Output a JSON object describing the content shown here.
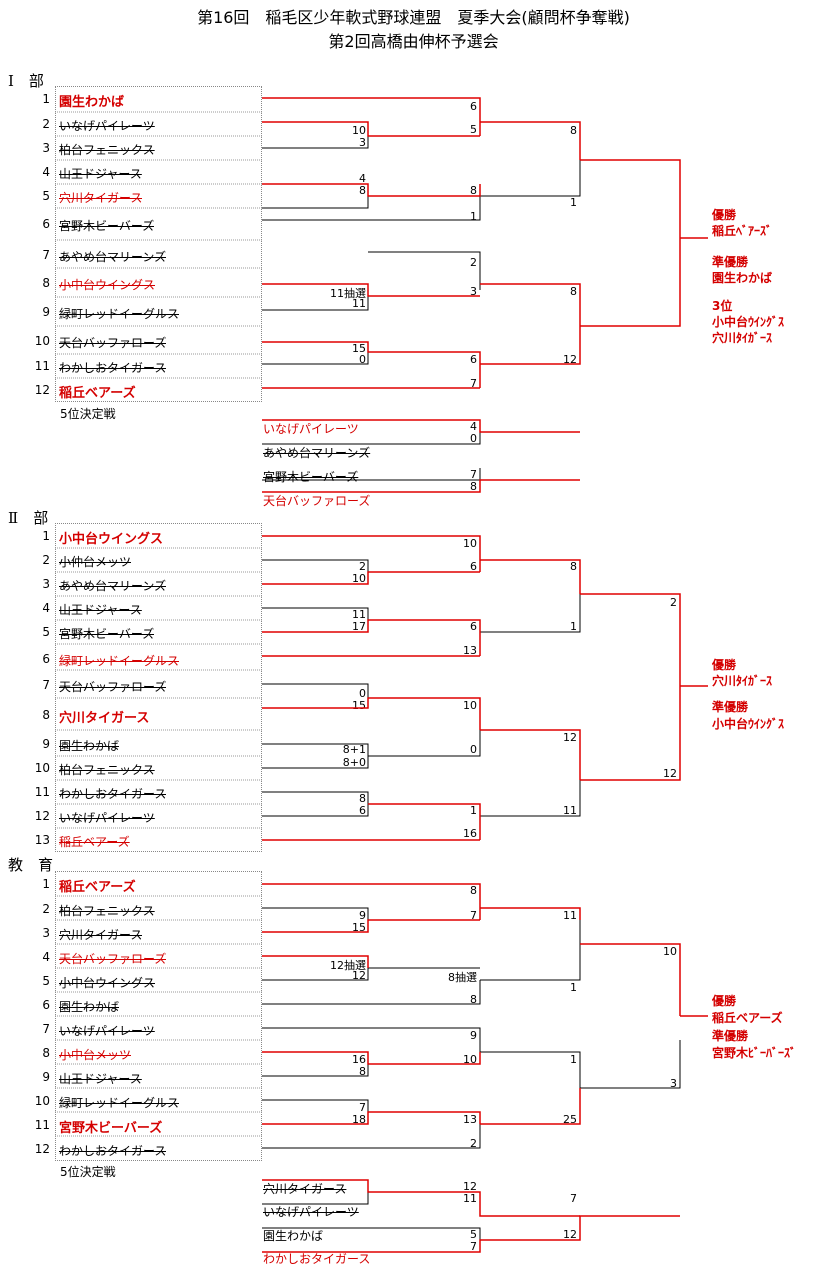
{
  "title": {
    "line1": "第16回　稲毛区少年軟式野球連盟　夏季大会(顧問杯争奪戦)",
    "line2": "第2回高橋由伸杯予選会"
  },
  "sections": {
    "s1": {
      "label": "Ⅰ　部",
      "teams": [
        {
          "no": "1",
          "name": "園生わかば"
        },
        {
          "no": "2",
          "name": "いなげパイレーツ"
        },
        {
          "no": "3",
          "name": "柏台フェニックス"
        },
        {
          "no": "4",
          "name": "山王ドジャース"
        },
        {
          "no": "5",
          "name": "穴川タイガース"
        },
        {
          "no": "6",
          "name": "宮野木ビーバーズ"
        },
        {
          "no": "7",
          "name": "あやめ台マリーンズ"
        },
        {
          "no": "8",
          "name": "小中台ウイングス"
        },
        {
          "no": "9",
          "name": "緑町レッドイーグルス"
        },
        {
          "no": "10",
          "name": "天台バッファローズ"
        },
        {
          "no": "11",
          "name": "わかしおタイガース"
        },
        {
          "no": "12",
          "name": "稲丘ベアーズ"
        }
      ],
      "scores": [
        "6",
        "5",
        "10",
        "3",
        "8",
        "4",
        "8",
        "1",
        "2",
        "11抽選",
        "3",
        "11",
        "8",
        "15",
        "0",
        "6",
        "12",
        "7",
        "1"
      ],
      "fifth_label": "5位決定戦",
      "fifth_teams": [
        "いなげパイレーツ",
        "あやめ台マリーンズ",
        "宮野木ビーバーズ",
        "天台バッファローズ"
      ],
      "fifth_scores": [
        "4",
        "0",
        "7",
        "8"
      ],
      "results": [
        "優勝",
        "稲丘ﾍﾞｱｰｽﾞ",
        "準優勝",
        "園生わかば",
        "3位",
        "小中台ｳｲﾝｸﾞｽ",
        "穴川ﾀｲｶﾞｰｽ"
      ]
    },
    "s2": {
      "label": "Ⅱ　部",
      "teams": [
        {
          "no": "1",
          "name": "小中台ウイングス"
        },
        {
          "no": "2",
          "name": "小仲台メッツ"
        },
        {
          "no": "3",
          "name": "あやめ台マリーンズ"
        },
        {
          "no": "4",
          "name": "山王ドジャース"
        },
        {
          "no": "5",
          "name": "宮野木ビーバーズ"
        },
        {
          "no": "6",
          "name": "緑町レッドイーグルス"
        },
        {
          "no": "7",
          "name": "天台バッファローズ"
        },
        {
          "no": "8",
          "name": "穴川タイガース"
        },
        {
          "no": "9",
          "name": "園生わかば"
        },
        {
          "no": "10",
          "name": "柏台フェニックス"
        },
        {
          "no": "11",
          "name": "わかしおタイガース"
        },
        {
          "no": "12",
          "name": "いなげパイレーツ"
        },
        {
          "no": "13",
          "name": "稲丘ベアーズ"
        }
      ],
      "scores": [
        "10",
        "2",
        "10",
        "6",
        "8",
        "11",
        "17",
        "6",
        "13",
        "1",
        "0",
        "15",
        "10",
        "8+1",
        "8+0",
        "0",
        "12",
        "8",
        "6",
        "1",
        "16",
        "11",
        "2",
        "12"
      ],
      "results": [
        "優勝",
        "穴川ﾀｲｶﾞｰｽ",
        "準優勝",
        "小中台ｳｲﾝｸﾞｽ"
      ]
    },
    "s3": {
      "label": "教　育",
      "teams": [
        {
          "no": "1",
          "name": "稲丘ベアーズ"
        },
        {
          "no": "2",
          "name": "柏台フェニックス"
        },
        {
          "no": "3",
          "name": "穴川タイガース"
        },
        {
          "no": "4",
          "name": "天台バッファローズ"
        },
        {
          "no": "5",
          "name": "小中台ウイングス"
        },
        {
          "no": "6",
          "name": "園生わかば"
        },
        {
          "no": "7",
          "name": "いなげパイレーツ"
        },
        {
          "no": "8",
          "name": "小中台メッツ"
        },
        {
          "no": "9",
          "name": "山王ドジャース"
        },
        {
          "no": "10",
          "name": "緑町レッドイーグルス"
        },
        {
          "no": "11",
          "name": "宮野木ビーバーズ"
        },
        {
          "no": "12",
          "name": "わかしおタイガース"
        }
      ],
      "scores": [
        "8",
        "9",
        "15",
        "7",
        "11",
        "12抽選",
        "12",
        "8抽選",
        "8",
        "1",
        "10",
        "9",
        "16",
        "8",
        "10",
        "1",
        "7",
        "18",
        "13",
        "2",
        "25",
        "3"
      ],
      "fifth_label": "5位決定戦",
      "fifth_teams": [
        "穴川タイガース",
        "いなげパイレーツ",
        "園生わかば",
        "わかしおタイガース"
      ],
      "fifth_scores": [
        "12",
        "11",
        "7",
        "5",
        "7",
        "12"
      ],
      "results": [
        "優勝",
        "稲丘ベアーズ",
        "準優勝",
        "宮野木ﾋﾞｰﾊﾞｰｽﾞ"
      ]
    }
  }
}
